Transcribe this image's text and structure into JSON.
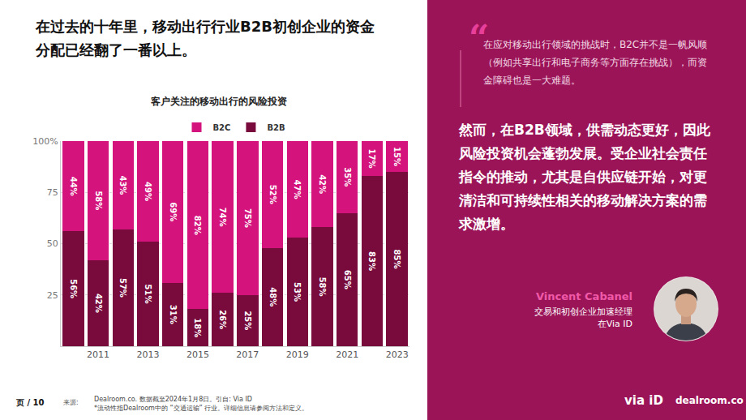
{
  "chart_data": {
    "type": "bar",
    "title": "客户关注的移动出行的风险投资",
    "categories": [
      null,
      "2011",
      null,
      "2013",
      null,
      "2015",
      null,
      "2017",
      null,
      "2019",
      null,
      "2021",
      null,
      "2023"
    ],
    "series": [
      {
        "name": "B2B",
        "color": "#780a3c",
        "values": [
          56,
          42,
          57,
          51,
          31,
          18,
          26,
          25,
          48,
          53,
          58,
          65,
          83,
          85
        ],
        "value_labels": [
          "56%",
          "42%",
          "57%",
          "51%",
          "31%",
          "18%",
          "26%",
          "25%",
          "48%",
          "53%",
          "58%",
          "65%",
          "83%",
          "85%"
        ]
      },
      {
        "name": "B2C",
        "color": "#d4137d",
        "values": [
          44,
          58,
          43,
          49,
          69,
          82,
          74,
          75,
          52,
          47,
          42,
          35,
          17,
          15
        ],
        "value_labels": [
          "44%",
          "58%",
          "43%",
          "49%",
          "69%",
          "82%",
          "74%",
          "75%",
          "52%",
          "47%",
          "42%",
          "35%",
          "17%",
          "15%"
        ]
      }
    ],
    "ylim": [
      0,
      100
    ],
    "yticks": [
      25,
      50,
      75,
      {
        "value": 100,
        "label": "100%"
      }
    ],
    "grid": true,
    "stacked": true,
    "data_labels": true,
    "legend": "top"
  },
  "page": {
    "headline": "在过去的十年里，移动出行行业B2B初创企业的资金分配已经翻了一番以上。",
    "footer": {
      "page": "页 / 10",
      "source_label": "来源:",
      "source": "Dealroom.co. 数据截至2024年1月8日。引自: Via ID",
      "note": "*流动性指Dealroom中的 “交通运输” 行业。详细信息请参阅方法和定义。"
    },
    "panel": {
      "quote_mark": "“",
      "quote": "在应对移动出行领域的挑战时，B2C并不是一帆风顺（例如共享出行和电子商务等方面存在挑战），而资金障碍也是一大难题。",
      "statement": "然而，在B2B领域，供需动态更好，因此风险投资机会蓬勃发展。受企业社会责任指令的推动，尤其是自供应链开始，对更清洁和可持续性相关的移动解决方案的需求激增。",
      "person_name": "Vincent Cabanel",
      "person_title": [
        "交易和初创企业加速经理",
        "在Via ID"
      ]
    },
    "logos": [
      "via iD",
      "dealroom.co"
    ]
  }
}
